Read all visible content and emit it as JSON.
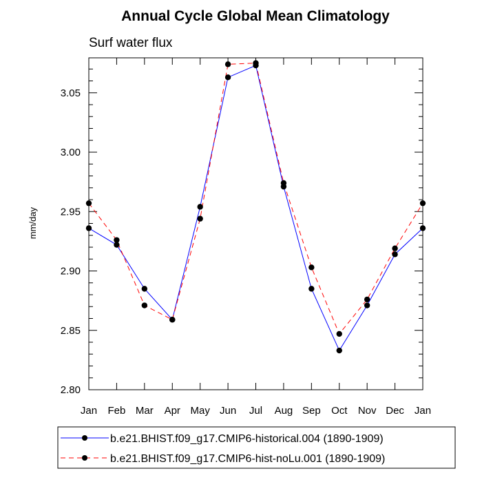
{
  "chart_data": {
    "type": "line",
    "title": "Annual Cycle Global Mean Climatology",
    "subtitle": "Surf water flux",
    "xlabel": "",
    "ylabel": "mm/day",
    "categories": [
      "Jan",
      "Feb",
      "Mar",
      "Apr",
      "May",
      "Jun",
      "Jul",
      "Aug",
      "Sep",
      "Oct",
      "Nov",
      "Dec",
      "Jan"
    ],
    "ylim": [
      2.8,
      3.08
    ],
    "yticks": [
      "2.80",
      "2.85",
      "2.90",
      "2.95",
      "3.00",
      "3.05"
    ],
    "grid": false,
    "legend_position": "bottom",
    "series": [
      {
        "name": "b.e21.BHIST.f09_g17.CMIP6-historical.004 (1890-1909)",
        "color": "#0000ff",
        "dash": "solid",
        "values": [
          2.936,
          2.922,
          2.885,
          2.859,
          2.954,
          3.063,
          3.073,
          2.971,
          2.885,
          2.833,
          2.871,
          2.914,
          2.936
        ]
      },
      {
        "name": "b.e21.BHIST.f09_g17.CMIP6-hist-noLu.001 (1890-1909)",
        "color": "#ff0000",
        "dash": "dashed",
        "values": [
          2.957,
          2.926,
          2.871,
          2.859,
          2.944,
          3.074,
          3.075,
          2.974,
          2.903,
          2.847,
          2.876,
          2.919,
          2.957
        ]
      }
    ]
  }
}
